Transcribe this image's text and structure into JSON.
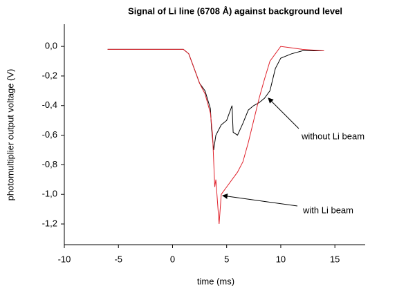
{
  "chart_data": {
    "type": "line",
    "title": "Signal of Li line (6708 Å) against background level",
    "x_label": "time (ms)",
    "y_label": "photomultiplier output voltage  (V)",
    "xlim": [
      -10,
      17.8
    ],
    "ylim": [
      -1.34,
      0.15
    ],
    "xticks": [
      -10,
      -5,
      0,
      5,
      10,
      15
    ],
    "yticks": [
      {
        "value": 0,
        "label": "0,0"
      },
      {
        "value": -0.2,
        "label": "-0,2"
      },
      {
        "value": -0.4,
        "label": "-0,4"
      },
      {
        "value": -0.6,
        "label": "-0,6"
      },
      {
        "value": -0.8,
        "label": "-0,8"
      },
      {
        "value": -1.0,
        "label": "-1,0"
      },
      {
        "value": -1.2,
        "label": "-1,2"
      }
    ],
    "series": [
      {
        "name": "without  Li beam",
        "color": "#000000",
        "x": [
          -6,
          1,
          1.5,
          2,
          2.5,
          3,
          3.5,
          3.6,
          3.8,
          4,
          4.5,
          5,
          5.5,
          5.6,
          6,
          6.5,
          7,
          7.5,
          8,
          8.5,
          9,
          9.5,
          10,
          11,
          12,
          14
        ],
        "values": [
          -0.02,
          -0.02,
          -0.05,
          -0.15,
          -0.25,
          -0.3,
          -0.42,
          -0.55,
          -0.7,
          -0.6,
          -0.53,
          -0.5,
          -0.4,
          -0.58,
          -0.6,
          -0.52,
          -0.43,
          -0.4,
          -0.38,
          -0.35,
          -0.3,
          -0.15,
          -0.08,
          -0.05,
          -0.03,
          -0.03
        ]
      },
      {
        "name": "with  Li beam",
        "color": "#e0202a",
        "x": [
          -6,
          1,
          1.5,
          2,
          2.5,
          3,
          3.5,
          3.7,
          3.9,
          4,
          4.3,
          4.5,
          5,
          5.5,
          6,
          6.5,
          7,
          7.5,
          8,
          8.5,
          9,
          9.5,
          10,
          11,
          12,
          14
        ],
        "values": [
          -0.02,
          -0.02,
          -0.05,
          -0.15,
          -0.25,
          -0.32,
          -0.45,
          -0.6,
          -0.95,
          -0.9,
          -1.2,
          -1.0,
          -0.95,
          -0.9,
          -0.85,
          -0.78,
          -0.65,
          -0.5,
          -0.35,
          -0.22,
          -0.1,
          -0.05,
          0.0,
          -0.01,
          -0.02,
          -0.03
        ]
      }
    ]
  }
}
